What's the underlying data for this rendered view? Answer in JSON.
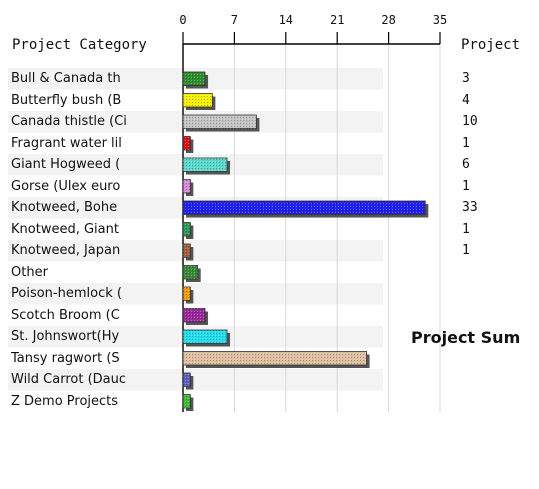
{
  "chart_data": {
    "type": "bar",
    "orientation": "horizontal",
    "category_header": "Project Category",
    "value_header": "Project",
    "summary_label": "Project Sum",
    "x_ticks": [
      0,
      7,
      14,
      21,
      28,
      35
    ],
    "xlim": [
      0,
      35
    ],
    "grid": true,
    "categories": [
      "Bull & Canada th",
      "Butterfly bush (B",
      "Canada thistle (Ci",
      "Fragrant water lil",
      "Giant Hogweed (",
      "Gorse (Ulex euro",
      "Knotweed, Bohe",
      "Knotweed, Giant",
      "Knotweed, Japan",
      "Other",
      "Poison-hemlock (",
      "Scotch Broom (C",
      "St. Johnswort(Hy",
      "Tansy ragwort (S",
      "Wild Carrot (Dauc",
      "Z Demo Projects"
    ],
    "values": [
      3,
      4,
      10,
      1,
      6,
      1,
      33,
      1,
      1,
      2,
      1,
      3,
      6,
      25,
      1,
      1
    ],
    "value_labels": [
      "3",
      "4",
      "10",
      "1",
      "6",
      "1",
      "33",
      "1",
      "1",
      "",
      "",
      "",
      "",
      "",
      "",
      ""
    ],
    "colors": [
      "#2f8f2f",
      "#f4f000",
      "#c4c4c4",
      "#dd1111",
      "#5ad8cc",
      "#d88ad8",
      "#2222ee",
      "#2a9a5a",
      "#a4603a",
      "#3a8a3a",
      "#f09a10",
      "#9a2a9a",
      "#22ddee",
      "#dcc0a0",
      "#6060c0",
      "#44bb33"
    ]
  }
}
